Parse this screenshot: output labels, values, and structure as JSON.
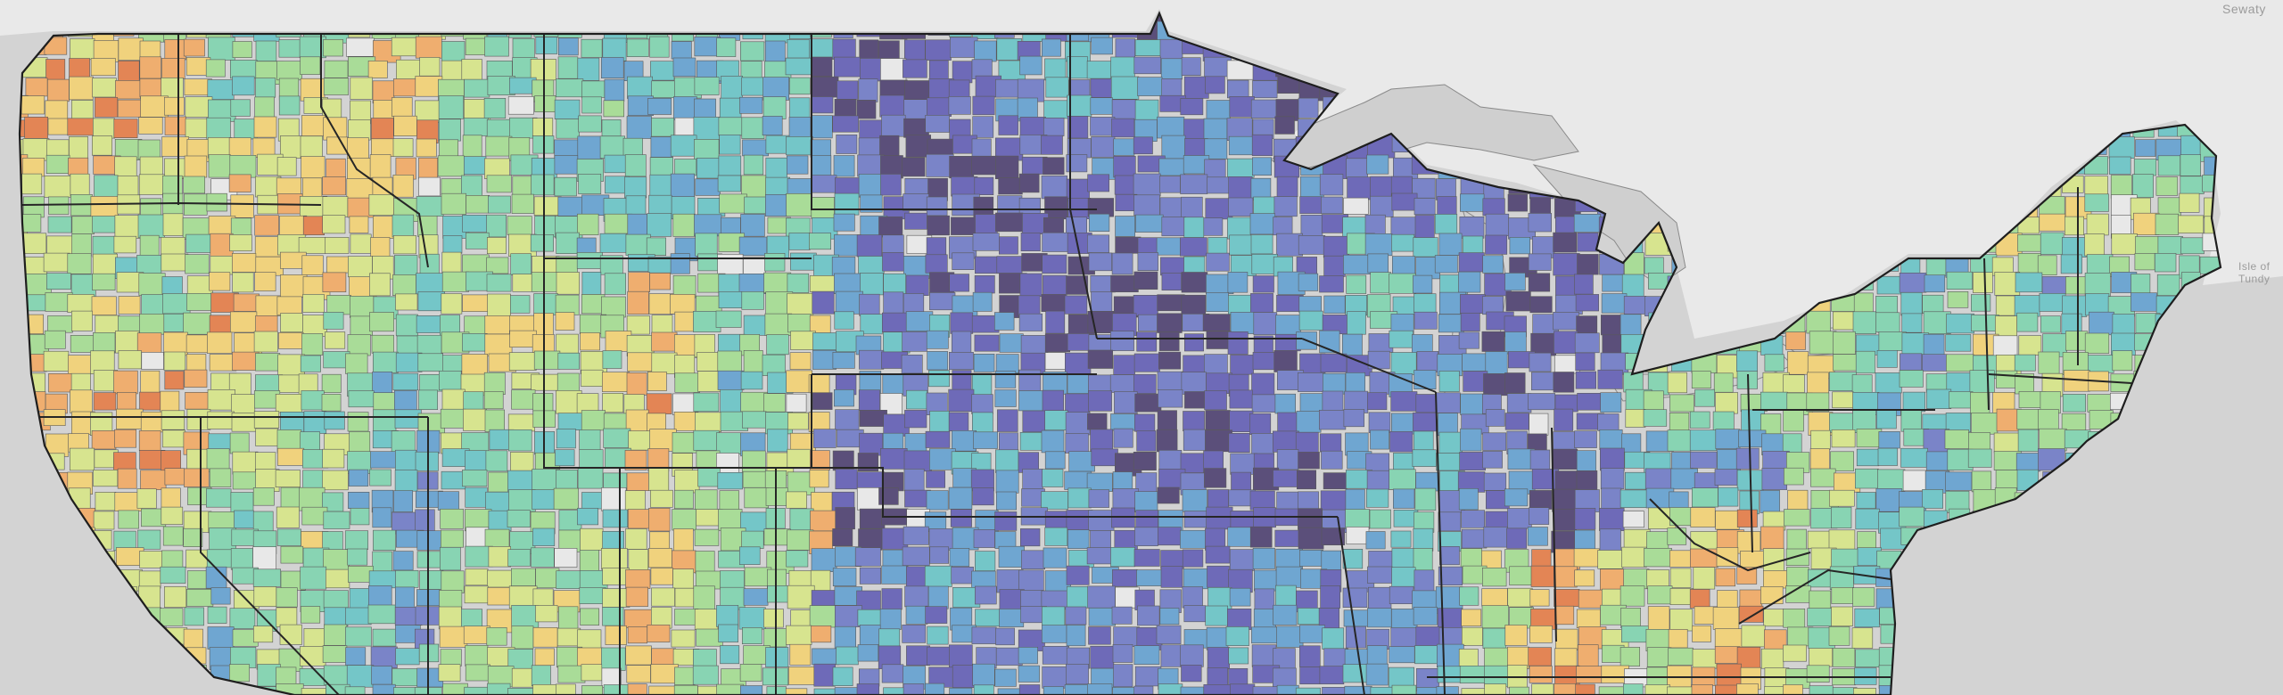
{
  "labels": {
    "top_right": "Sewaty",
    "right_edge": "Isle of\nTundy"
  },
  "palette": [
    "#5b4f7a",
    "#6e6ab8",
    "#7a84c8",
    "#6fa6d1",
    "#74c6c8",
    "#88d4b3",
    "#a9dc98",
    "#d7e48f",
    "#f0d27d",
    "#efae6f",
    "#e38555",
    "#e8e8e8"
  ],
  "colors": {
    "ocean": "#d0d0d0",
    "land_bg": "#e6e6e6",
    "state_line": "#2b2b2b",
    "county_line": "#5a5a5a"
  }
}
